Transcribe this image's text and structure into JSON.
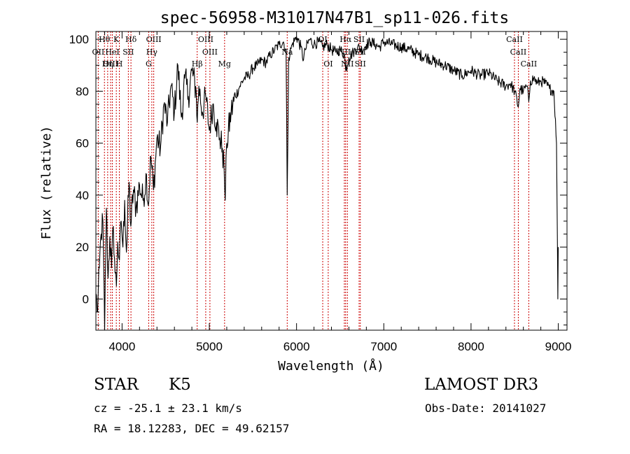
{
  "chart_data": {
    "type": "line",
    "title": "spec-56958-M31017N47B1_sp11-026.fits",
    "xlabel": "Wavelength (Å)",
    "ylabel": "Flux (relative)",
    "xlim": [
      3700,
      9100
    ],
    "ylim": [
      -12,
      103
    ],
    "xticks": [
      4000,
      5000,
      6000,
      7000,
      8000,
      9000
    ],
    "yticks": [
      0,
      20,
      40,
      60,
      80,
      100
    ],
    "grid": false,
    "line_color": "#000000",
    "marker_color": "#cc0000",
    "spectrum": {
      "name": "flux",
      "x": [
        3700,
        3720,
        3740,
        3760,
        3780,
        3800,
        3820,
        3840,
        3860,
        3880,
        3900,
        3920,
        3935,
        3950,
        3970,
        3990,
        4010,
        4030,
        4050,
        4080,
        4100,
        4130,
        4160,
        4200,
        4240,
        4280,
        4300,
        4330,
        4360,
        4400,
        4440,
        4480,
        4520,
        4560,
        4600,
        4640,
        4680,
        4720,
        4760,
        4800,
        4850,
        4862,
        4880,
        4920,
        4960,
        5000,
        5040,
        5080,
        5120,
        5150,
        5170,
        5183,
        5200,
        5250,
        5300,
        5350,
        5400,
        5450,
        5500,
        5550,
        5600,
        5650,
        5700,
        5750,
        5800,
        5850,
        5880,
        5893,
        5910,
        5950,
        6000,
        6050,
        6080,
        6100,
        6150,
        6200,
        6250,
        6300,
        6350,
        6400,
        6450,
        6500,
        6550,
        6563,
        6600,
        6650,
        6700,
        6750,
        6800,
        6850,
        6900,
        6950,
        7000,
        7100,
        7200,
        7300,
        7400,
        7500,
        7600,
        7700,
        7800,
        7900,
        8000,
        8100,
        8200,
        8300,
        8400,
        8450,
        8500,
        8542,
        8560,
        8600,
        8640,
        8662,
        8680,
        8720,
        8760,
        8800,
        8850,
        8900,
        8950,
        8980,
        8990,
        8995,
        9000
      ],
      "y": [
        2,
        -5,
        12,
        25,
        30,
        -12,
        35,
        8,
        24,
        12,
        28,
        10,
        5,
        22,
        15,
        30,
        20,
        38,
        18,
        45,
        28,
        42,
        35,
        44,
        38,
        48,
        36,
        55,
        42,
        62,
        58,
        75,
        68,
        82,
        72,
        90,
        70,
        85,
        78,
        88,
        80,
        68,
        82,
        72,
        78,
        65,
        75,
        68,
        62,
        58,
        50,
        38,
        60,
        72,
        78,
        82,
        85,
        86,
        89,
        90,
        92,
        91,
        94,
        96,
        98,
        99,
        95,
        40,
        93,
        98,
        101,
        97,
        92,
        96,
        100,
        98,
        99,
        97,
        98,
        96,
        95,
        96,
        94,
        88,
        93,
        95,
        97,
        96,
        98,
        99,
        98,
        97,
        99,
        98,
        97,
        96,
        94,
        93,
        91,
        90,
        88,
        86,
        88,
        86,
        87,
        84,
        82,
        83,
        80,
        74,
        81,
        80,
        82,
        76,
        84,
        85,
        83,
        84,
        83,
        81,
        80,
        60,
        22,
        0,
        20
      ]
    },
    "line_markers": [
      {
        "label": "Hθ",
        "wavelength": 3798,
        "row": 0
      },
      {
        "label": "OII",
        "wavelength": 3727,
        "row": 1
      },
      {
        "label": "OIII",
        "wavelength": 3869,
        "row": 2
      },
      {
        "label": "Hη",
        "wavelength": 3835,
        "row": 2
      },
      {
        "label": "K",
        "wavelength": 3934,
        "row": 0
      },
      {
        "label": "HeI",
        "wavelength": 3889,
        "row": 1
      },
      {
        "label": "H",
        "wavelength": 3969,
        "row": 2
      },
      {
        "label": "SII",
        "wavelength": 4072,
        "row": 1
      },
      {
        "label": "Hδ",
        "wavelength": 4102,
        "row": 0
      },
      {
        "label": "OIII",
        "wavelength": 4363,
        "row": 0
      },
      {
        "label": "Hγ",
        "wavelength": 4341,
        "row": 1
      },
      {
        "label": "G",
        "wavelength": 4305,
        "row": 2
      },
      {
        "label": "Hβ",
        "wavelength": 4861,
        "row": 2
      },
      {
        "label": "OIII",
        "wavelength": 4959,
        "row": 0
      },
      {
        "label": "OIII",
        "wavelength": 5007,
        "row": 1
      },
      {
        "label": "Mg",
        "wavelength": 5175,
        "row": 2
      },
      {
        "label": "Na",
        "wavelength": 5893,
        "row": 1
      },
      {
        "label": "OI",
        "wavelength": 6300,
        "row": 0
      },
      {
        "label": "OI",
        "wavelength": 6363,
        "row": 2
      },
      {
        "label": "Hα",
        "wavelength": 6563,
        "row": 0
      },
      {
        "label": "NII",
        "wavelength": 6548,
        "row": 1
      },
      {
        "label": "NII",
        "wavelength": 6583,
        "row": 2
      },
      {
        "label": "SII",
        "wavelength": 6717,
        "row": 0
      },
      {
        "label": "SII",
        "wavelength": 6731,
        "row": 1
      },
      {
        "label": "SII",
        "wavelength": 6731,
        "row": 2
      },
      {
        "label": "CaII",
        "wavelength": 8498,
        "row": 0
      },
      {
        "label": "CaII",
        "wavelength": 8542,
        "row": 1
      },
      {
        "label": "CaII",
        "wavelength": 8662,
        "row": 2
      }
    ]
  },
  "info": {
    "object_class": "STAR",
    "subclass": "K5",
    "survey": "LAMOST DR3",
    "redshift_line": "cz = -25.1 ± 23.1 km/s",
    "obs_date_line": "Obs-Date: 20141027",
    "coords_line": "RA =  18.12283, DEC =  49.62157"
  }
}
